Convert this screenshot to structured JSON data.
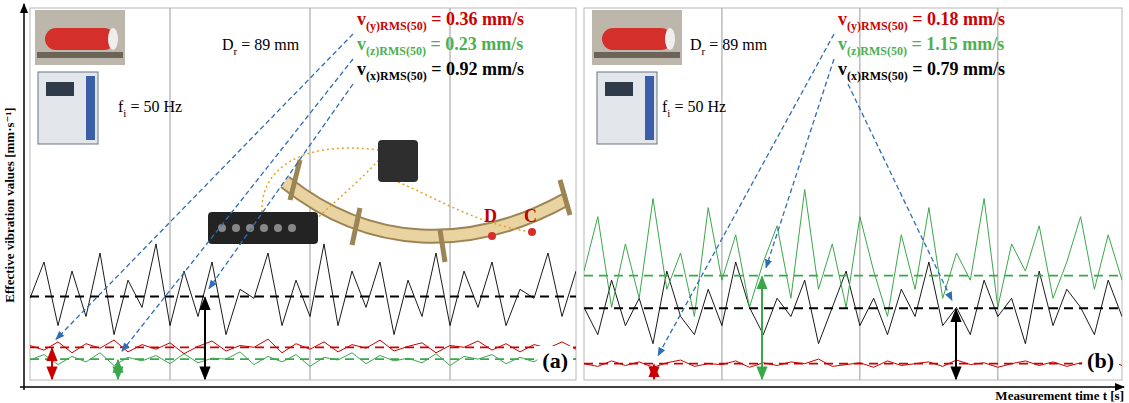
{
  "axes": {
    "y_label": "Effective vibration values [mm·s⁻¹]",
    "x_label": "Measurement time t [s]"
  },
  "chart_data": [
    {
      "type": "line",
      "title": "(a)",
      "roller_diameter": [
        "D",
        "r",
        " = 89 mm"
      ],
      "frequency": [
        "f",
        "i",
        " = 50 Hz"
      ],
      "measurement_points": [
        "D",
        "C"
      ],
      "xlim": [
        0,
        39
      ],
      "ylim": [
        0,
        4.1
      ],
      "xticks": [
        10,
        20,
        30
      ],
      "grid": true,
      "tick_labels": false,
      "x": [
        0,
        1,
        2,
        3,
        4,
        5,
        6,
        7,
        8,
        9,
        10,
        11,
        12,
        13,
        14,
        15,
        16,
        17,
        18,
        19,
        20,
        21,
        22,
        23,
        24,
        25,
        26,
        27,
        28,
        29,
        30,
        31,
        32,
        33,
        34,
        35,
        36,
        37,
        38,
        39
      ],
      "series": [
        {
          "color": "#cc0000",
          "line_style": "solid",
          "rms": 0.36,
          "rms_label": [
            "v",
            "(y)RMS(50)",
            " = 0.36 mm/s"
          ],
          "values": [
            0.38,
            0.33,
            0.42,
            0.3,
            0.4,
            0.35,
            0.44,
            0.31,
            0.39,
            0.34,
            0.41,
            0.29,
            0.37,
            0.43,
            0.32,
            0.38,
            0.36,
            0.45,
            0.3,
            0.4,
            0.34,
            0.42,
            0.31,
            0.39,
            0.35,
            0.44,
            0.32,
            0.37,
            0.41,
            0.3,
            0.38,
            0.36,
            0.43,
            0.33,
            0.4,
            0.31,
            0.39,
            0.35,
            0.42,
            0.34
          ]
        },
        {
          "color": "#3aa84a",
          "line_style": "solid",
          "rms": 0.23,
          "rms_label": [
            "v",
            "(z)RMS(50)",
            " = 0.23 mm/s"
          ],
          "values": [
            0.22,
            0.28,
            0.17,
            0.26,
            0.2,
            0.3,
            0.16,
            0.25,
            0.21,
            0.27,
            0.18,
            0.29,
            0.19,
            0.24,
            0.23,
            0.31,
            0.17,
            0.26,
            0.2,
            0.28,
            0.15,
            0.25,
            0.22,
            0.3,
            0.18,
            0.27,
            0.21,
            0.24,
            0.19,
            0.29,
            0.16,
            0.26,
            0.23,
            0.28,
            0.18,
            0.25,
            0.2,
            0.3,
            0.17,
            0.24
          ]
        },
        {
          "color": "#000000",
          "line_style": "solid",
          "rms": 0.92,
          "rms_label": [
            "v",
            "(x)RMS(50)",
            " = 0.92 mm/s"
          ],
          "values": [
            0.9,
            1.3,
            0.6,
            1.2,
            0.7,
            1.4,
            0.5,
            1.1,
            0.8,
            1.5,
            0.6,
            1.2,
            0.7,
            1.3,
            0.5,
            1.0,
            0.9,
            1.4,
            0.6,
            1.1,
            0.7,
            1.5,
            0.6,
            1.2,
            0.8,
            1.3,
            0.5,
            1.1,
            0.7,
            1.4,
            0.6,
            1.2,
            0.8,
            1.3,
            0.6,
            1.0,
            0.9,
            1.4,
            0.7,
            1.2
          ]
        }
      ]
    },
    {
      "type": "line",
      "title": "(b)",
      "roller_diameter": [
        "D",
        "r",
        " = 89 mm"
      ],
      "frequency": [
        "f",
        "i",
        " = 50 Hz"
      ],
      "xlim": [
        0,
        39
      ],
      "ylim": [
        0,
        4.1
      ],
      "xticks": [
        10,
        20,
        30
      ],
      "grid": true,
      "tick_labels": false,
      "x": [
        0,
        1,
        2,
        3,
        4,
        5,
        6,
        7,
        8,
        9,
        10,
        11,
        12,
        13,
        14,
        15,
        16,
        17,
        18,
        19,
        20,
        21,
        22,
        23,
        24,
        25,
        26,
        27,
        28,
        29,
        30,
        31,
        32,
        33,
        34,
        35,
        36,
        37,
        38,
        39
      ],
      "series": [
        {
          "color": "#cc0000",
          "line_style": "solid",
          "rms": 0.18,
          "rms_label": [
            "v",
            "(y)RMS(50)",
            " = 0.18 mm/s"
          ],
          "values": [
            0.18,
            0.15,
            0.21,
            0.16,
            0.2,
            0.14,
            0.19,
            0.22,
            0.15,
            0.18,
            0.17,
            0.21,
            0.14,
            0.19,
            0.16,
            0.2,
            0.18,
            0.23,
            0.15,
            0.17,
            0.19,
            0.14,
            0.21,
            0.16,
            0.18,
            0.2,
            0.15,
            0.22,
            0.17,
            0.19,
            0.14,
            0.18,
            0.21,
            0.16,
            0.2,
            0.15,
            0.19,
            0.17,
            0.22,
            0.16
          ]
        },
        {
          "color": "#3aa84a",
          "line_style": "solid",
          "rms": 1.15,
          "rms_label": [
            "v",
            "(z)RMS(50)",
            " = 1.15 mm/s"
          ],
          "values": [
            1.2,
            1.8,
            0.8,
            1.5,
            0.9,
            2.0,
            1.0,
            1.4,
            0.7,
            1.9,
            1.1,
            1.6,
            0.8,
            1.3,
            1.7,
            0.9,
            2.1,
            1.0,
            1.5,
            0.8,
            1.8,
            1.2,
            0.7,
            1.6,
            1.0,
            1.9,
            0.9,
            1.4,
            1.1,
            2.0,
            0.8,
            1.5,
            1.2,
            1.7,
            0.9,
            1.3,
            1.8,
            1.0,
            1.6,
            1.1
          ]
        },
        {
          "color": "#000000",
          "line_style": "solid",
          "rms": 0.79,
          "rms_label": [
            "v",
            "(x)RMS(50)",
            " = 0.79 mm/s"
          ],
          "values": [
            0.8,
            0.5,
            1.1,
            0.6,
            0.9,
            0.4,
            1.2,
            0.7,
            0.5,
            1.0,
            0.6,
            1.3,
            0.8,
            0.5,
            0.9,
            0.7,
            1.1,
            0.4,
            0.8,
            1.2,
            0.6,
            0.9,
            0.5,
            1.0,
            0.7,
            1.3,
            0.6,
            0.8,
            0.5,
            1.1,
            0.7,
            0.9,
            0.4,
            1.2,
            0.6,
            1.0,
            0.8,
            0.5,
            1.1,
            0.7
          ]
        }
      ]
    }
  ]
}
